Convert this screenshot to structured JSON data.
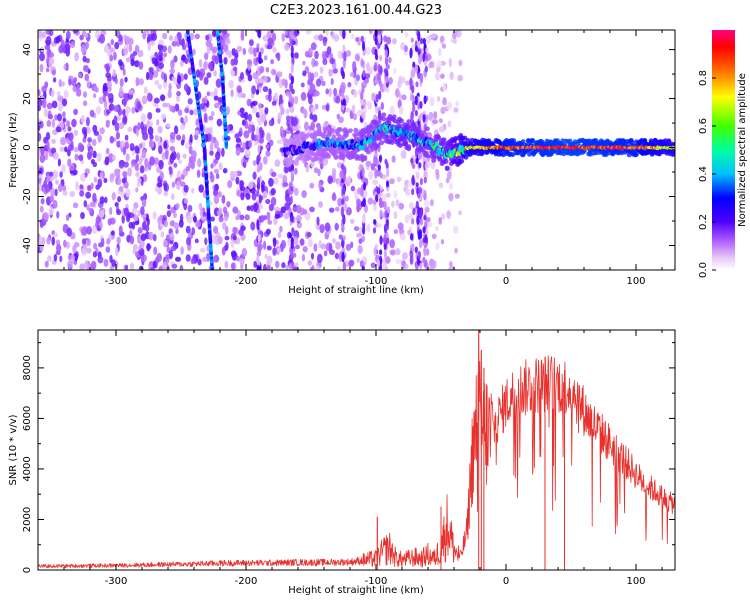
{
  "title": "C2E3.2023.161.00.44.G23",
  "chart_data": [
    {
      "type": "heatmap",
      "xlabel": "Height of straight line (km)",
      "ylabel": "Frequency (Hz)",
      "xlim": [
        -360,
        130
      ],
      "ylim": [
        -50,
        48
      ],
      "xticks": [
        -300,
        -200,
        -100,
        0,
        100
      ],
      "yticks": [
        -40,
        -20,
        0,
        20,
        40
      ],
      "colorbar": {
        "label": "Normalized spectral amplitude",
        "range": [
          0.0,
          1.0
        ],
        "ticks": [
          0.0,
          0.2,
          0.4,
          0.6,
          0.8
        ],
        "tick_labels": [
          "0.0",
          "0.2",
          "0.4",
          "0.6",
          "0.8"
        ],
        "colormap": [
          "#f6e9fb",
          "#e3b4f5",
          "#a020f0",
          "#6a00ff",
          "#0000ff",
          "#00c8ff",
          "#00ff80",
          "#80ff00",
          "#ffff00",
          "#ff8000",
          "#ff0000",
          "#ff0080"
        ]
      },
      "features": [
        {
          "description_key": "noise",
          "x_range": [
            -360,
            -50
          ],
          "y_range": [
            -50,
            48
          ],
          "amplitude": 0.15
        },
        {
          "description_key": "streak",
          "x": [
            -245,
            -238,
            -232,
            -226
          ],
          "y": [
            48,
            22,
            0,
            -50
          ],
          "amplitude": 0.3
        },
        {
          "description_key": "streak",
          "x": [
            -222,
            -218,
            -215
          ],
          "y": [
            48,
            28,
            0
          ],
          "amplitude": 0.3
        },
        {
          "description_key": "carrier",
          "x": [
            -170,
            -140,
            -110,
            -95,
            -80,
            -60,
            -45,
            -30,
            0,
            50,
            100,
            130
          ],
          "y": [
            -2,
            2,
            1,
            8,
            6,
            2,
            -3,
            0,
            0,
            0,
            0,
            0
          ],
          "amplitude": [
            0.25,
            0.35,
            0.4,
            0.45,
            0.5,
            0.45,
            0.5,
            0.7,
            0.9,
            0.95,
            0.9,
            0.7
          ]
        }
      ]
    },
    {
      "type": "line",
      "xlabel": "Height of straight line (km)",
      "ylabel": "SNR (10 * v/v)",
      "xlim": [
        -360,
        130
      ],
      "ylim": [
        0,
        9500
      ],
      "xticks": [
        -300,
        -200,
        -100,
        0,
        100
      ],
      "yticks": [
        0,
        2000,
        4000,
        6000,
        8000
      ],
      "color": "#e8302c",
      "series": [
        {
          "x": [
            -360,
            -340,
            -320,
            -300,
            -280,
            -260,
            -240,
            -220,
            -200,
            -180,
            -160,
            -140,
            -120,
            -110,
            -100,
            -95,
            -90,
            -85,
            -80,
            -75,
            -70,
            -65,
            -60,
            -55,
            -50,
            -45,
            -40,
            -35,
            -30,
            -28,
            -26,
            -24,
            -22,
            -20,
            -18,
            -16,
            -14,
            -12,
            -10,
            -8,
            -6,
            -4,
            -2,
            0,
            5,
            10,
            15,
            20,
            25,
            30,
            35,
            40,
            45,
            50,
            55,
            60,
            65,
            70,
            75,
            80,
            85,
            90,
            95,
            100,
            105,
            110,
            115,
            120,
            125,
            130
          ],
          "y": [
            150,
            160,
            170,
            180,
            200,
            220,
            240,
            270,
            280,
            280,
            300,
            300,
            320,
            380,
            450,
            700,
            900,
            500,
            400,
            450,
            500,
            450,
            600,
            450,
            900,
            1800,
            800,
            500,
            1500,
            3000,
            4500,
            5500,
            6000,
            5800,
            5500,
            5600,
            5400,
            5300,
            5500,
            5800,
            6000,
            6200,
            6400,
            6600,
            6900,
            7100,
            7200,
            7300,
            7350,
            7400,
            7400,
            7350,
            7300,
            7200,
            6800,
            6300,
            5900,
            5600,
            5300,
            5000,
            4700,
            4400,
            4100,
            3800,
            3500,
            3300,
            3100,
            2900,
            2700,
            2600
          ],
          "peaks": [
            {
              "x": -99,
              "y": 2100
            },
            {
              "x": -50,
              "y": 2500
            },
            {
              "x": -21,
              "y": 9500
            },
            {
              "x": -19,
              "y": 8700
            },
            {
              "x": -17,
              "y": 8000
            },
            {
              "x": 30,
              "y": 8100
            },
            {
              "x": 45,
              "y": 7900
            }
          ]
        }
      ]
    }
  ]
}
